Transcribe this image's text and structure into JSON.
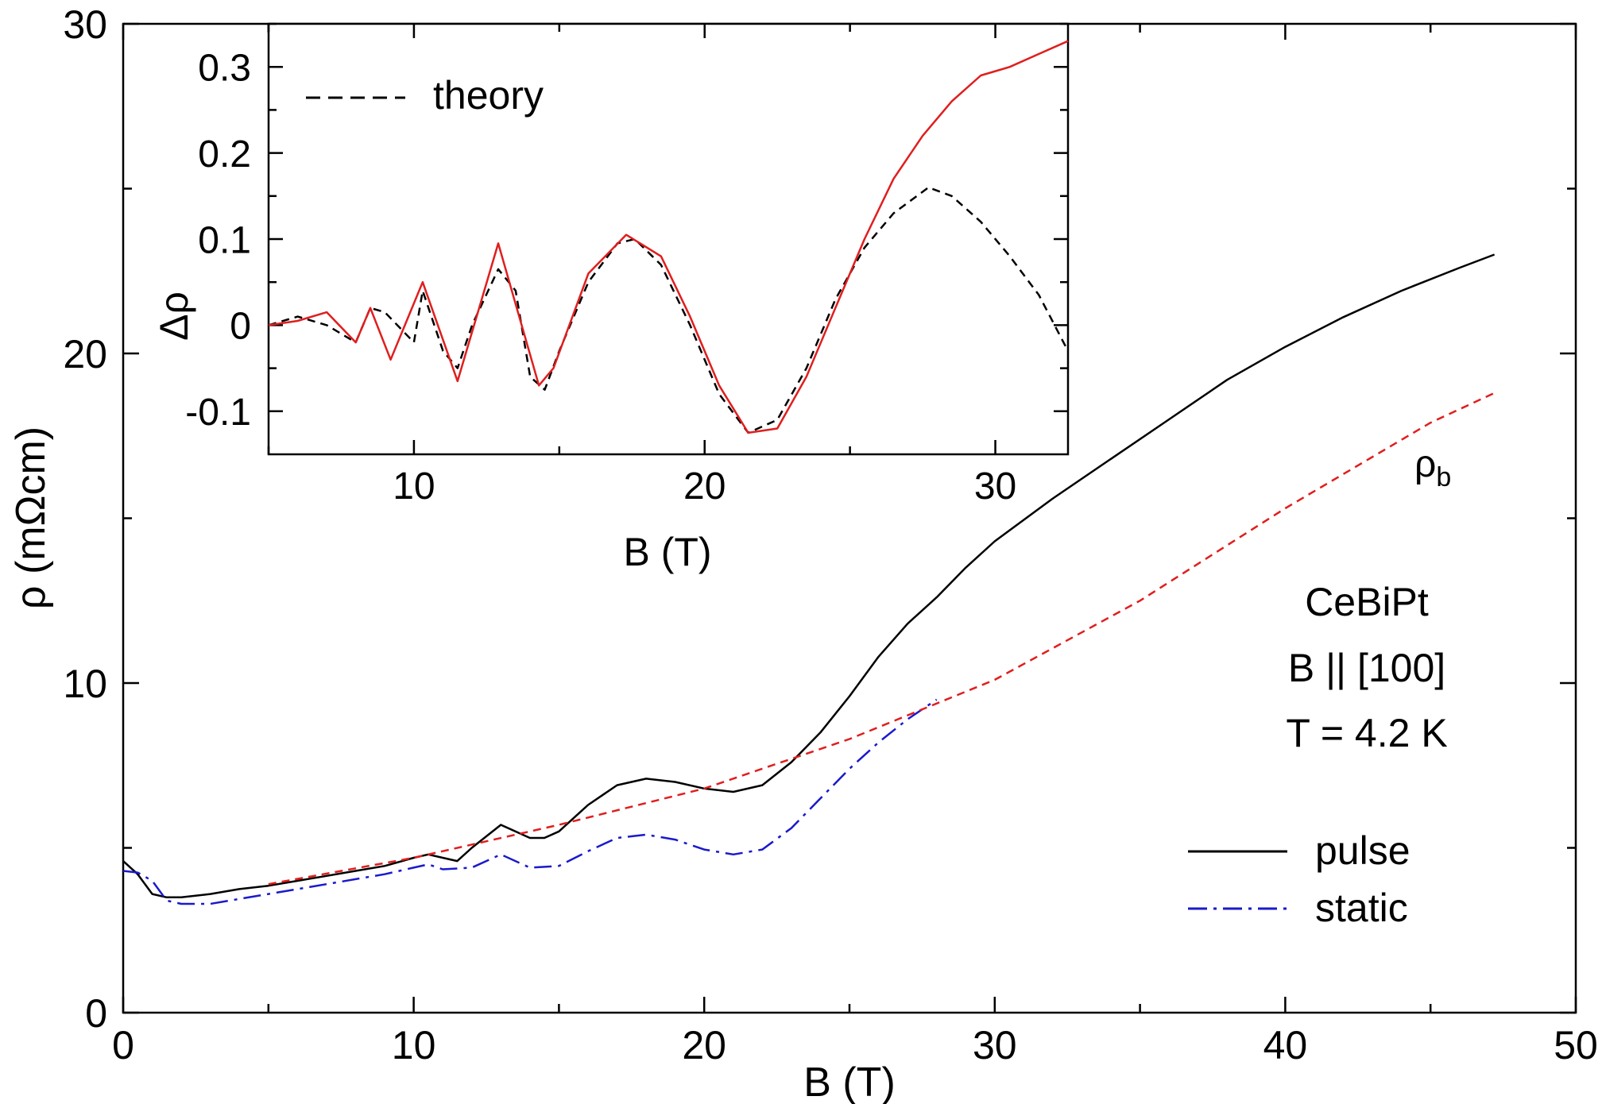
{
  "chart_data": [
    {
      "type": "line",
      "title": "",
      "xlabel": "B (T)",
      "ylabel": "ρ (mΩcm)",
      "xlim": [
        0,
        50
      ],
      "ylim": [
        0,
        30
      ],
      "x_ticks": [
        "0",
        "10",
        "20",
        "30",
        "40",
        "50"
      ],
      "y_ticks": [
        "0",
        "10",
        "20",
        "30"
      ],
      "annotations": [
        "CeBiPt",
        "B || [100]",
        "T = 4.2 K"
      ],
      "legend": {
        "position": "bottom-right",
        "entries": [
          "pulse",
          "static"
        ]
      },
      "series": [
        {
          "name": "pulse",
          "color": "#000000",
          "style": "solid",
          "x": [
            0,
            0.5,
            1.0,
            1.5,
            2,
            3,
            4,
            5,
            6,
            7,
            8,
            9,
            10,
            10.5,
            11,
            11.5,
            12,
            13,
            14,
            14.5,
            15,
            16,
            17,
            18,
            19,
            20,
            21,
            22,
            23,
            24,
            25,
            26,
            27,
            28,
            29,
            30,
            32,
            34,
            36,
            38,
            40,
            42,
            44,
            46,
            47.2
          ],
          "y": [
            4.6,
            4.2,
            3.6,
            3.5,
            3.5,
            3.6,
            3.75,
            3.85,
            4.0,
            4.15,
            4.3,
            4.45,
            4.7,
            4.8,
            4.7,
            4.6,
            5.0,
            5.7,
            5.3,
            5.3,
            5.5,
            6.3,
            6.9,
            7.1,
            7.0,
            6.8,
            6.7,
            6.9,
            7.6,
            8.5,
            9.6,
            10.8,
            11.8,
            12.6,
            13.5,
            14.3,
            15.6,
            16.8,
            18.0,
            19.2,
            20.2,
            21.1,
            21.9,
            22.6,
            23.0
          ]
        },
        {
          "name": "static",
          "color": "#1a1acc",
          "style": "dash-dot",
          "x": [
            0,
            0.5,
            1,
            1.5,
            2,
            3,
            4,
            5,
            6,
            7,
            8,
            9,
            10,
            10.5,
            11,
            12,
            13,
            14,
            15,
            16,
            17,
            18,
            19,
            20,
            21,
            22,
            23,
            24,
            25,
            26,
            27,
            28
          ],
          "y": [
            4.3,
            4.25,
            4.0,
            3.4,
            3.3,
            3.3,
            3.45,
            3.6,
            3.75,
            3.9,
            4.05,
            4.2,
            4.4,
            4.5,
            4.35,
            4.4,
            4.8,
            4.4,
            4.45,
            4.9,
            5.3,
            5.4,
            5.25,
            4.95,
            4.8,
            4.95,
            5.6,
            6.5,
            7.4,
            8.2,
            8.9,
            9.5
          ]
        },
        {
          "name": "",
          "color": "#e01e1e",
          "style": "dashed",
          "x": [
            5,
            10,
            15,
            20,
            25,
            30,
            35,
            40,
            45,
            47.2
          ],
          "y": [
            3.9,
            4.7,
            5.7,
            6.8,
            8.3,
            10.1,
            12.5,
            15.3,
            17.9,
            18.8
          ]
        }
      ],
      "series_labels": [
        {
          "text": "ρ",
          "subscript": "b"
        }
      ]
    },
    {
      "type": "line",
      "title": "",
      "xlabel": "B (T)",
      "ylabel": "Δρ",
      "xlim": [
        5,
        32.5
      ],
      "ylim": [
        -0.15,
        0.35
      ],
      "x_ticks": [
        "10",
        "20",
        "30"
      ],
      "y_ticks": [
        "-0.1",
        "0",
        "0.1",
        "0.2",
        "0.3"
      ],
      "legend": {
        "position": "top-left",
        "entries": [
          "theory"
        ]
      },
      "series": [
        {
          "name": "theory",
          "color": "#000000",
          "style": "dashed",
          "x": [
            5,
            6,
            7,
            8,
            8.5,
            9,
            10,
            10.3,
            11,
            11.5,
            12,
            12.9,
            13.5,
            14,
            14.5,
            15,
            16,
            17,
            17.6,
            18.5,
            19.5,
            20.5,
            21.5,
            22.5,
            23.5,
            24.5,
            25.5,
            26.5,
            27.7,
            28.5,
            29.5,
            30.5,
            31.5,
            32.5
          ],
          "y": [
            0,
            0.01,
            0,
            -0.02,
            0.02,
            0.015,
            -0.02,
            0.04,
            -0.03,
            -0.05,
            0.0,
            0.065,
            0.04,
            -0.06,
            -0.075,
            -0.03,
            0.05,
            0.095,
            0.1,
            0.07,
            0.0,
            -0.08,
            -0.125,
            -0.11,
            -0.05,
            0.03,
            0.09,
            0.13,
            0.16,
            0.15,
            0.12,
            0.08,
            0.035,
            -0.03
          ]
        },
        {
          "name": "",
          "color": "#e01e1e",
          "style": "solid",
          "x": [
            5,
            6,
            7,
            8,
            8.5,
            9.2,
            10.3,
            11.5,
            12.9,
            14.3,
            14.8,
            16,
            17.3,
            18.5,
            19.5,
            20.5,
            21.5,
            22.5,
            23.5,
            24.5,
            25.5,
            26.5,
            27.5,
            28.5,
            29.5,
            30.5,
            31.5,
            32.5
          ],
          "y": [
            0,
            0.005,
            0.015,
            -0.02,
            0.02,
            -0.04,
            0.05,
            -0.065,
            0.095,
            -0.07,
            -0.05,
            0.06,
            0.105,
            0.08,
            0.01,
            -0.07,
            -0.125,
            -0.12,
            -0.06,
            0.02,
            0.1,
            0.17,
            0.22,
            0.26,
            0.29,
            0.3,
            0.315,
            0.33
          ]
        }
      ]
    }
  ]
}
